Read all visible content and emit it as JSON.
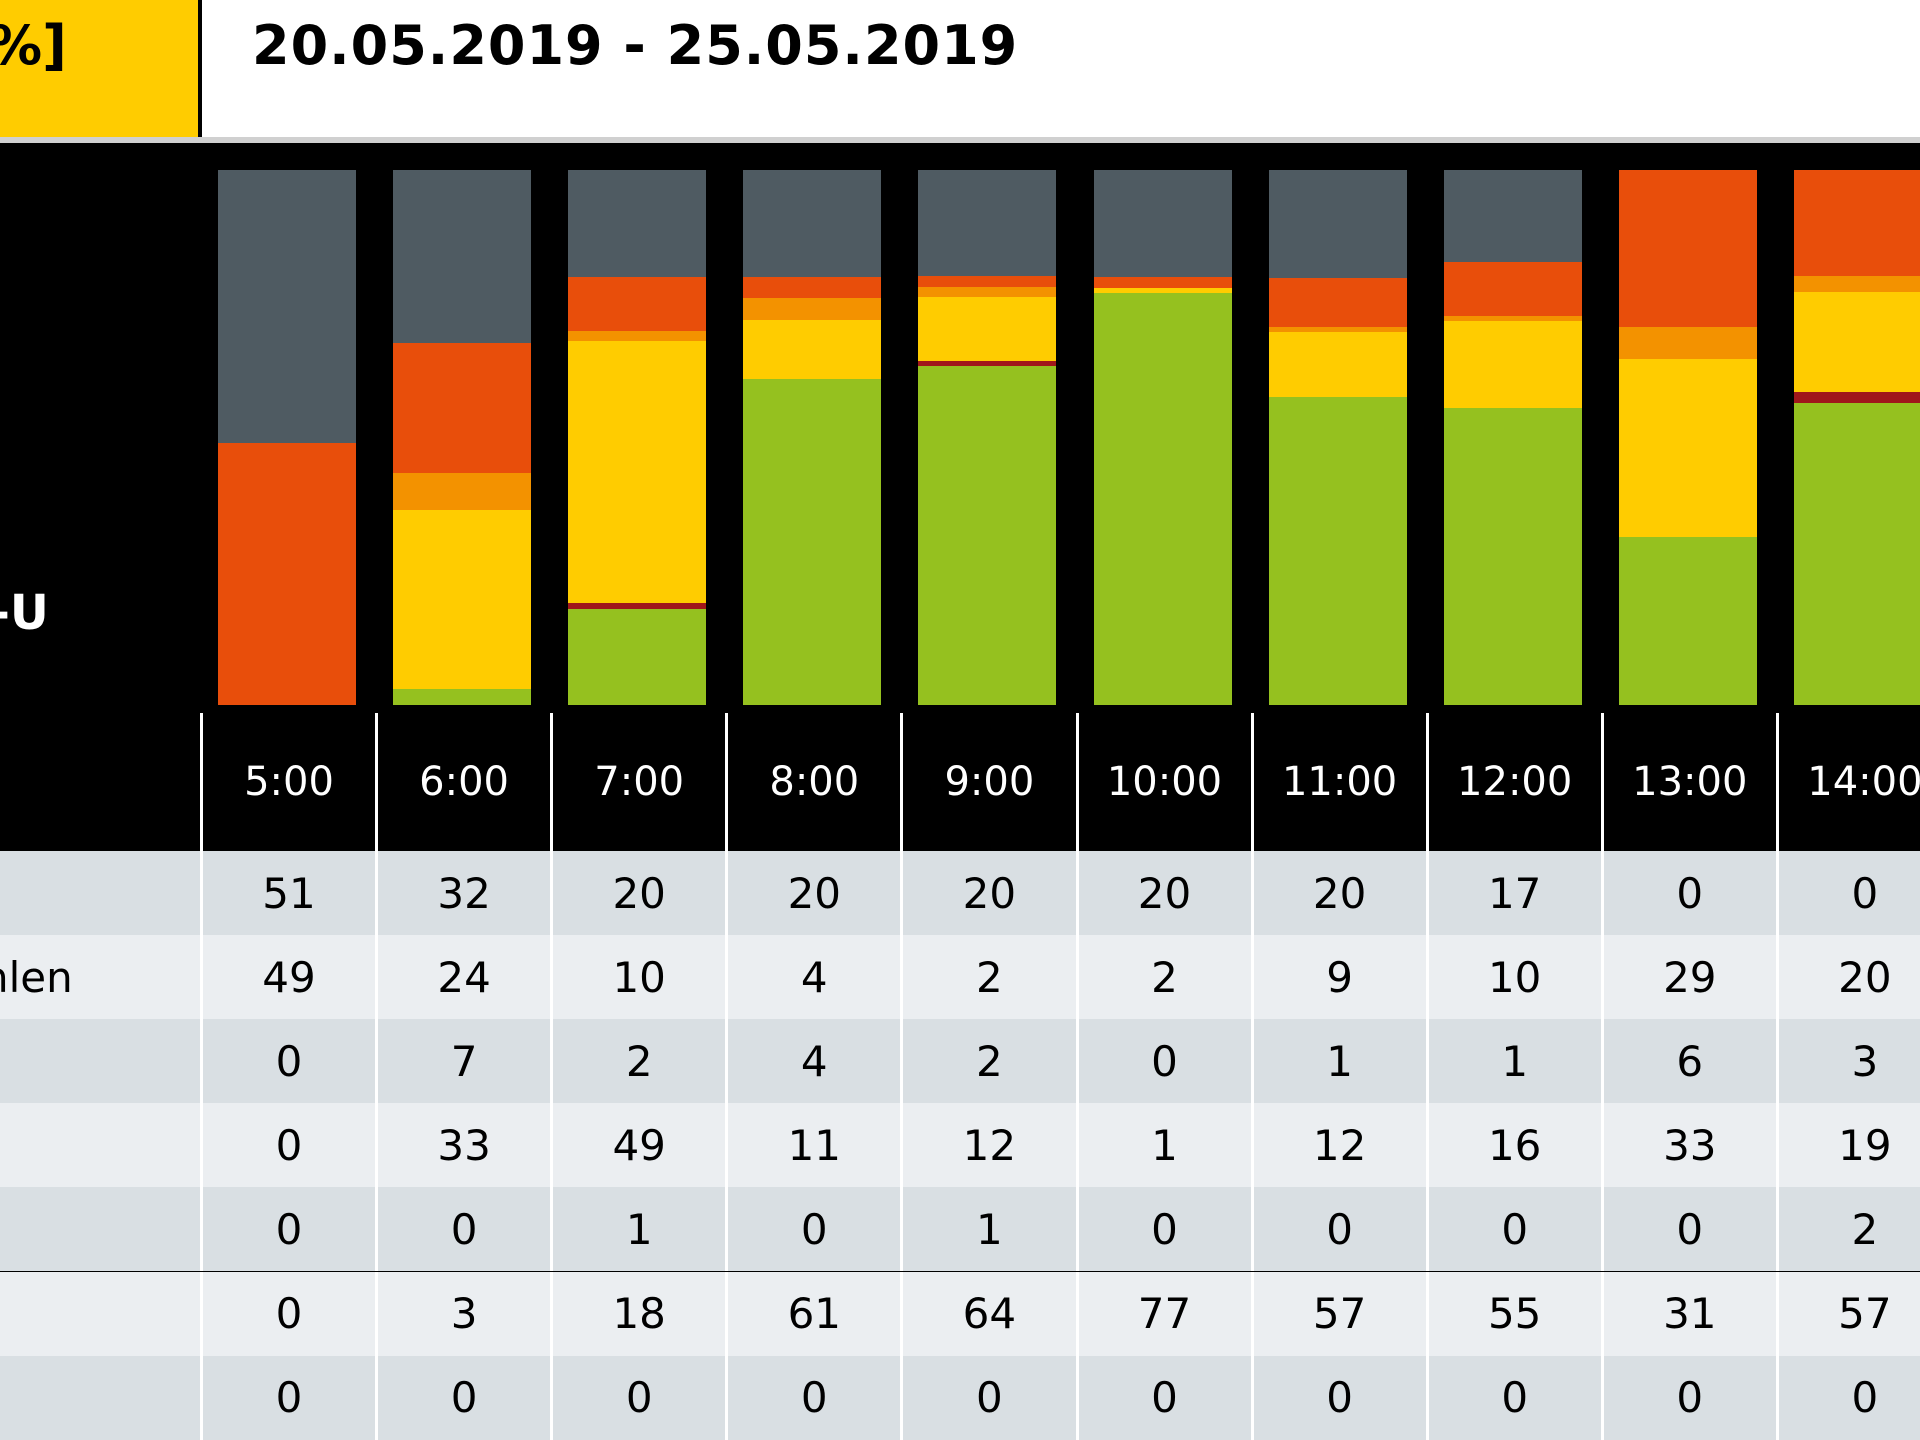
{
  "header": {
    "unit_label": "%]",
    "date_range": "20.05.2019 - 25.05.2019"
  },
  "side_labels": {
    "chart_label": "-U",
    "row_labels": [
      "",
      "hlen",
      "",
      "",
      "",
      "",
      ""
    ]
  },
  "colors": {
    "series": [
      "#4f5b62",
      "#e84e0b",
      "#f39200",
      "#ffcc00",
      "#a0171b",
      "#95c11f",
      "#6a6a6a"
    ],
    "row_even": "#d9dfe3",
    "row_odd": "#ebeef1",
    "header_accent": "#ffcc00"
  },
  "chart_data": {
    "type": "bar",
    "stacked": true,
    "categories": [
      "5:00",
      "6:00",
      "7:00",
      "8:00",
      "9:00",
      "10:00",
      "11:00",
      "12:00",
      "13:00",
      "14:00"
    ],
    "series": [
      {
        "values": [
          51,
          32,
          20,
          20,
          20,
          20,
          20,
          17,
          0,
          0
        ]
      },
      {
        "values": [
          49,
          24,
          10,
          4,
          2,
          2,
          9,
          10,
          29,
          20
        ]
      },
      {
        "values": [
          0,
          7,
          2,
          4,
          2,
          0,
          1,
          1,
          6,
          3
        ]
      },
      {
        "values": [
          0,
          33,
          49,
          11,
          12,
          1,
          12,
          16,
          33,
          19
        ]
      },
      {
        "values": [
          0,
          0,
          1,
          0,
          1,
          0,
          0,
          0,
          0,
          2
        ]
      },
      {
        "values": [
          0,
          3,
          18,
          61,
          64,
          77,
          57,
          55,
          31,
          57
        ]
      },
      {
        "values": [
          0,
          0,
          0,
          0,
          0,
          0,
          0,
          0,
          0,
          0
        ]
      }
    ],
    "ylim": [
      0,
      100
    ],
    "grid": false,
    "legend": "none"
  }
}
